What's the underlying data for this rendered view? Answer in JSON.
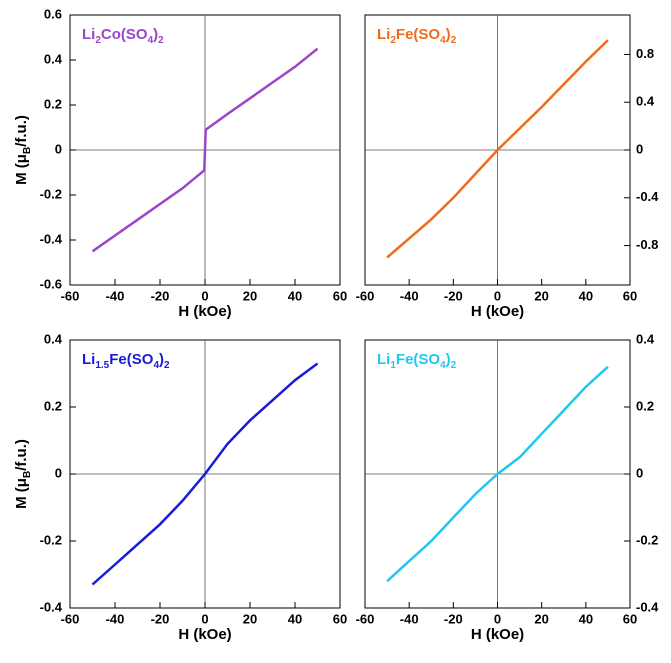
{
  "chart_data": [
    {
      "type": "line",
      "label_parts": [
        "Li",
        "2",
        "Co(SO",
        "4",
        ")",
        "2"
      ],
      "ylabel_parts": [
        "M (μ",
        "B",
        "/f.u.)"
      ],
      "xlabel": "H (kOe)",
      "y_axis_side": "left",
      "xlim": [
        -60,
        60
      ],
      "xticks": [
        -60,
        -40,
        -20,
        0,
        20,
        40,
        60
      ],
      "ylim": [
        -0.6,
        0.6
      ],
      "yticks": [
        -0.6,
        -0.4,
        -0.2,
        0,
        0.2,
        0.4,
        0.6
      ],
      "color": "#9b45c9",
      "x": [
        -50,
        -40,
        -30,
        -20,
        -10,
        -0.3,
        0.3,
        10,
        20,
        30,
        40,
        50
      ],
      "values": [
        -0.45,
        -0.38,
        -0.31,
        -0.24,
        -0.17,
        -0.09,
        0.09,
        0.16,
        0.23,
        0.3,
        0.37,
        0.45
      ]
    },
    {
      "type": "line",
      "label_parts": [
        "Li",
        "2",
        "Fe(SO",
        "4",
        ")",
        "2"
      ],
      "xlabel": "H (kOe)",
      "y_axis_side": "right",
      "xlim": [
        -60,
        60
      ],
      "xticks": [
        -60,
        -40,
        -20,
        0,
        20,
        40,
        60
      ],
      "ylim": [
        -1.13,
        1.13
      ],
      "yticks": [
        -0.8,
        -0.4,
        0,
        0.4,
        0.8
      ],
      "color": "#f26a1b",
      "x": [
        -50,
        -40,
        -30,
        -20,
        -10,
        0,
        10,
        20,
        30,
        40,
        50
      ],
      "values": [
        -0.9,
        -0.74,
        -0.58,
        -0.4,
        -0.2,
        0,
        0.18,
        0.36,
        0.55,
        0.74,
        0.92
      ]
    },
    {
      "type": "line",
      "label_parts": [
        "Li",
        "1.5",
        "Fe(SO",
        "4",
        ")",
        "2"
      ],
      "ylabel_parts": [
        "M (μ",
        "B",
        "/f.u.)"
      ],
      "xlabel": "H (kOe)",
      "y_axis_side": "left",
      "xlim": [
        -60,
        60
      ],
      "xticks": [
        -60,
        -40,
        -20,
        0,
        20,
        40,
        60
      ],
      "ylim": [
        -0.4,
        0.4
      ],
      "yticks": [
        -0.4,
        -0.2,
        0,
        0.2,
        0.4
      ],
      "color": "#1a1adb",
      "x": [
        -50,
        -40,
        -30,
        -20,
        -10,
        0,
        10,
        20,
        30,
        40,
        50
      ],
      "values": [
        -0.33,
        -0.27,
        -0.21,
        -0.15,
        -0.08,
        0,
        0.09,
        0.16,
        0.22,
        0.28,
        0.33
      ]
    },
    {
      "type": "line",
      "label_parts": [
        "Li",
        "1",
        "Fe(SO",
        "4",
        ")",
        "2"
      ],
      "xlabel": "H (kOe)",
      "y_axis_side": "right",
      "xlim": [
        -60,
        60
      ],
      "xticks": [
        -60,
        -40,
        -20,
        0,
        20,
        40,
        60
      ],
      "ylim": [
        -0.4,
        0.4
      ],
      "yticks": [
        -0.4,
        -0.2,
        0,
        0.2,
        0.4
      ],
      "color": "#1ec8ef",
      "x": [
        -50,
        -40,
        -30,
        -20,
        -10,
        0,
        10,
        20,
        30,
        40,
        50
      ],
      "values": [
        -0.32,
        -0.26,
        -0.2,
        -0.13,
        -0.06,
        0,
        0.05,
        0.12,
        0.19,
        0.26,
        0.32
      ]
    }
  ]
}
